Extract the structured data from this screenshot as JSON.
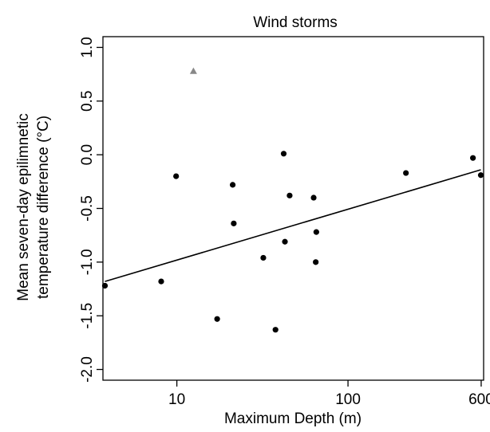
{
  "chart_data": {
    "type": "scatter",
    "title": "Wind storms",
    "xlabel": "Maximum Depth (m)",
    "ylabel_lines": [
      "Mean seven-day epilimnetic",
      "temperature difference (°C)"
    ],
    "x_scale": "log",
    "xlim": [
      3.7,
      620
    ],
    "ylim": [
      -2.1,
      1.1
    ],
    "x_ticks": [
      10,
      100,
      600
    ],
    "x_tick_labels": [
      "10",
      "100",
      "600"
    ],
    "y_ticks": [
      -2.0,
      -1.5,
      -1.0,
      -0.5,
      0.0,
      0.5,
      1.0
    ],
    "y_tick_labels": [
      "-2.0",
      "-1.5",
      "-1.0",
      "-0.5",
      "0.0",
      "0.5",
      "1.0"
    ],
    "grid": false,
    "legend": "none",
    "colors": {
      "points": "#000000",
      "outlier": "#888888",
      "fit_line": "#000000"
    },
    "points": [
      {
        "x": 3.8,
        "y": -1.22
      },
      {
        "x": 8.1,
        "y": -1.18
      },
      {
        "x": 9.9,
        "y": -0.2
      },
      {
        "x": 17.2,
        "y": -1.53
      },
      {
        "x": 21.2,
        "y": -0.28
      },
      {
        "x": 21.5,
        "y": -0.64
      },
      {
        "x": 32.0,
        "y": -0.96
      },
      {
        "x": 37.7,
        "y": -1.63
      },
      {
        "x": 42.1,
        "y": 0.01
      },
      {
        "x": 42.8,
        "y": -0.81
      },
      {
        "x": 45.6,
        "y": -0.38
      },
      {
        "x": 63.0,
        "y": -0.4
      },
      {
        "x": 64.8,
        "y": -1.0
      },
      {
        "x": 65.3,
        "y": -0.72
      },
      {
        "x": 218,
        "y": -0.17
      },
      {
        "x": 537,
        "y": -0.03
      },
      {
        "x": 597,
        "y": -0.19
      }
    ],
    "outliers": [
      {
        "x": 12.5,
        "y": 0.78
      }
    ],
    "fit_line": {
      "x": [
        3.8,
        597
      ],
      "y": [
        -1.18,
        -0.14
      ]
    }
  }
}
